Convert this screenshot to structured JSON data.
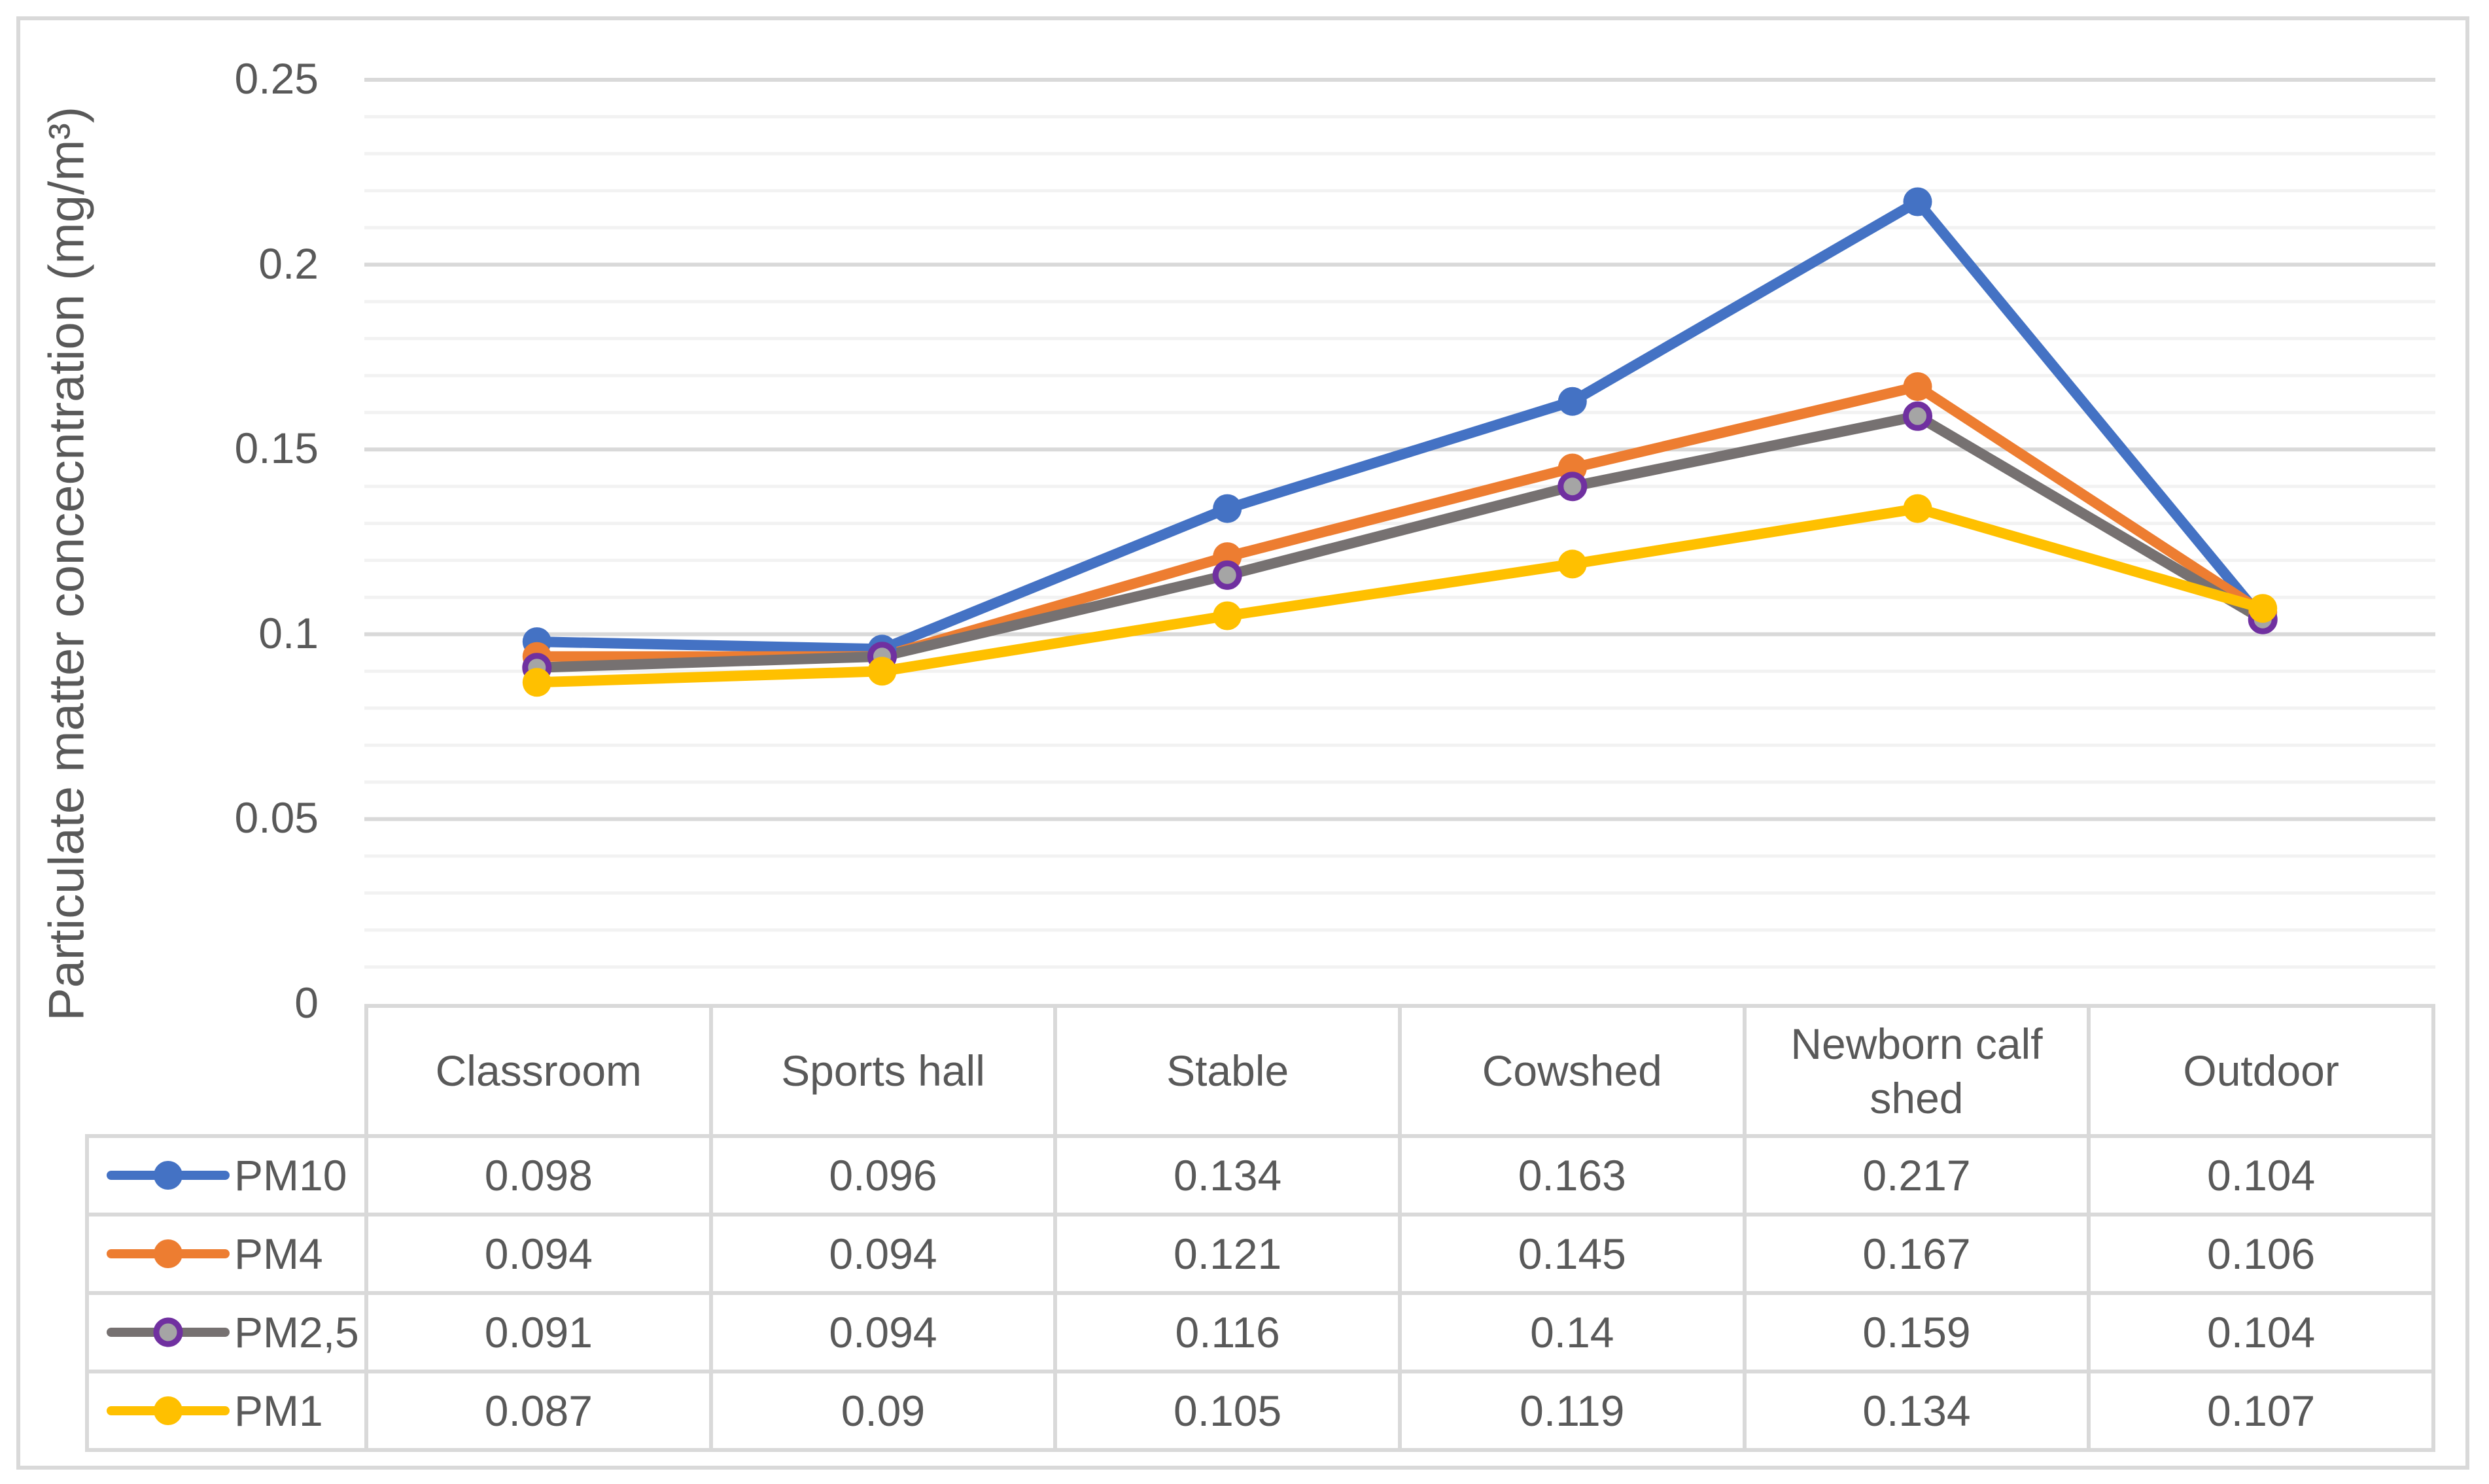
{
  "figure": {
    "background": "#FFFFFF",
    "frame_border_color": "#D9D9D9"
  },
  "chart_data": {
    "type": "line",
    "title": "",
    "xlabel": "",
    "ylabel": "Particulate matter concecntration (mg/m³)",
    "categories": [
      "Classroom",
      "Sports hall",
      "Stable",
      "Cowshed",
      "Newborn calf shed",
      "Outdoor"
    ],
    "series": [
      {
        "name": "PM10",
        "color": "#4472C4",
        "marker": "circle",
        "values": [
          0.098,
          0.096,
          0.134,
          0.163,
          0.217,
          0.104
        ]
      },
      {
        "name": "PM4",
        "color": "#ED7D31",
        "marker": "circle",
        "values": [
          0.094,
          0.094,
          0.121,
          0.145,
          0.167,
          0.106
        ]
      },
      {
        "name": "PM2,5",
        "color": "#767171",
        "marker": "circle-ring",
        "marker_fill": "#A5A5A5",
        "marker_ring": "#7030A0",
        "values": [
          0.091,
          0.094,
          0.116,
          0.14,
          0.159,
          0.104
        ]
      },
      {
        "name": "PM1",
        "color": "#FFC000",
        "marker": "circle",
        "values": [
          0.087,
          0.09,
          0.105,
          0.119,
          0.134,
          0.107
        ]
      }
    ],
    "ylim": [
      0,
      0.25
    ],
    "yticks": [
      {
        "label": "0",
        "value": 0
      },
      {
        "label": "0.05",
        "value": 0.05
      },
      {
        "label": "0.1",
        "value": 0.1
      },
      {
        "label": "0.15",
        "value": 0.15
      },
      {
        "label": "0.2",
        "value": 0.2
      },
      {
        "label": "0.25",
        "value": 0.25
      }
    ],
    "grid": {
      "minor_step": 0.01,
      "major_step": 0.05,
      "minor_color": "#F2F2F2",
      "major_color": "#D9D9D9"
    },
    "legend_position": "data-table-left-column",
    "data_table_shown": true,
    "text_color": "#595959"
  }
}
